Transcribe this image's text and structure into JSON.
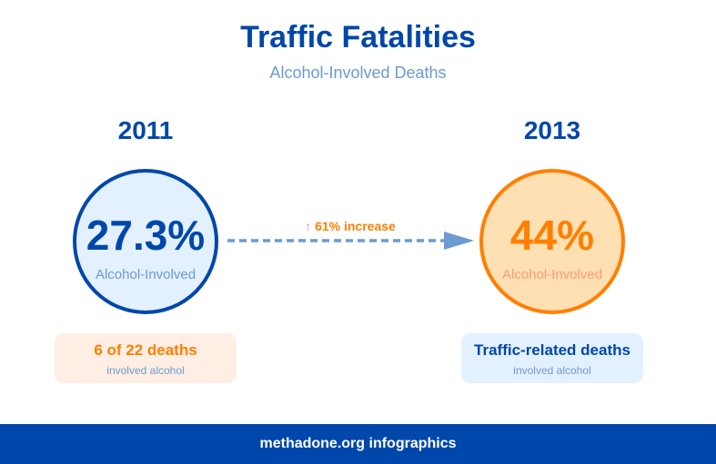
{
  "title": "Traffic Fatalities",
  "subtitle": "Alcohol-Involved Deaths",
  "left": {
    "year": "2011",
    "percent": "27.3%",
    "label": "Alcohol-Involved",
    "box_main": "6 of 22 deaths",
    "box_sub": "involved alcohol"
  },
  "right": {
    "year": "2013",
    "percent": "44%",
    "label": "Alcohol-Involved",
    "box_main": "Traffic-related deaths",
    "box_sub": "involved alcohol"
  },
  "change": {
    "arrow": "↑",
    "text": "61% increase"
  },
  "footer": "methadone.org infographics",
  "colors": {
    "blue": "#0047ab",
    "orange": "#ff7f00",
    "light_blue": "#6b9bd1"
  }
}
